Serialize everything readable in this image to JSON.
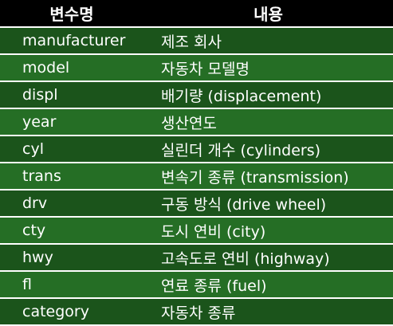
{
  "table": {
    "headers": [
      "변수명",
      "내용"
    ],
    "rows": [
      {
        "name": "manufacturer",
        "desc": "제조 회사"
      },
      {
        "name": "model",
        "desc": "자동차 모델명"
      },
      {
        "name": "displ",
        "desc": "배기량 (displacement)"
      },
      {
        "name": "year",
        "desc": "생산연도"
      },
      {
        "name": "cyl",
        "desc": "실린더 개수 (cylinders)"
      },
      {
        "name": "trans",
        "desc": "변속기 종류 (transmission)"
      },
      {
        "name": "drv",
        "desc": "구동 방식 (drive wheel)"
      },
      {
        "name": "cty",
        "desc": "도시 연비 (city)"
      },
      {
        "name": "hwy",
        "desc": "고속도로 연비 (highway)"
      },
      {
        "name": "fl",
        "desc": "연료 종류 (fuel)"
      },
      {
        "name": "category",
        "desc": "자동차 종류"
      }
    ]
  },
  "colors": {
    "header_bg": "#000000",
    "row_dark": "#1b541b",
    "row_light": "#256e25",
    "text": "#ffffff"
  }
}
